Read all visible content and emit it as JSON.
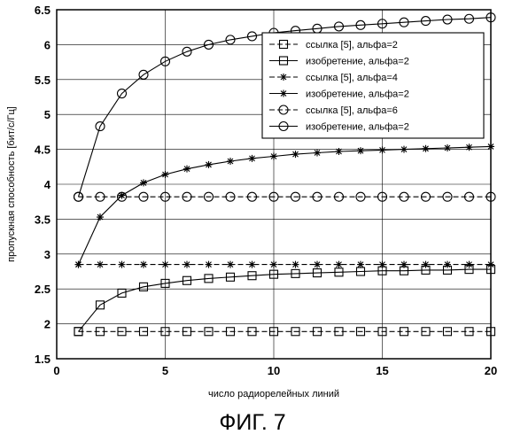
{
  "figure": {
    "caption": "ФИГ. 7"
  },
  "chart_data": {
    "type": "line",
    "xlabel": "число радиорелейных линий",
    "ylabel": "пропускная способность [бит/с/Гц]",
    "xlim": [
      0,
      20
    ],
    "ylim": [
      1.5,
      6.5
    ],
    "x_ticks": [
      0,
      5,
      10,
      15,
      20
    ],
    "y_ticks": [
      1.5,
      2,
      2.5,
      3,
      3.5,
      4,
      4.5,
      5,
      5.5,
      6,
      6.5
    ],
    "grid": true,
    "legend_position": "top-right",
    "x": [
      1,
      2,
      3,
      4,
      5,
      6,
      7,
      8,
      9,
      10,
      11,
      12,
      13,
      14,
      15,
      16,
      17,
      18,
      19,
      20
    ],
    "series": [
      {
        "name": "ссылка [5], альфа=2",
        "marker": "square",
        "line": "dashed",
        "values": [
          1.89,
          1.89,
          1.89,
          1.89,
          1.89,
          1.89,
          1.89,
          1.89,
          1.89,
          1.89,
          1.89,
          1.89,
          1.89,
          1.89,
          1.89,
          1.89,
          1.89,
          1.89,
          1.89,
          1.89
        ]
      },
      {
        "name": "изобретение, альфа=2",
        "marker": "square",
        "line": "solid",
        "values": [
          1.89,
          2.27,
          2.44,
          2.53,
          2.58,
          2.62,
          2.65,
          2.67,
          2.69,
          2.71,
          2.72,
          2.73,
          2.74,
          2.75,
          2.76,
          2.76,
          2.77,
          2.77,
          2.78,
          2.78
        ]
      },
      {
        "name": "ссылка [5], альфа=4",
        "marker": "star",
        "line": "dashed",
        "values": [
          2.85,
          2.85,
          2.85,
          2.85,
          2.85,
          2.85,
          2.85,
          2.85,
          2.85,
          2.85,
          2.85,
          2.85,
          2.85,
          2.85,
          2.85,
          2.85,
          2.85,
          2.85,
          2.85,
          2.85
        ]
      },
      {
        "name": "изобретение, альфа=2",
        "marker": "star",
        "line": "solid",
        "values": [
          2.85,
          3.53,
          3.84,
          4.02,
          4.14,
          4.22,
          4.28,
          4.33,
          4.37,
          4.4,
          4.43,
          4.45,
          4.47,
          4.48,
          4.49,
          4.5,
          4.51,
          4.52,
          4.53,
          4.54
        ]
      },
      {
        "name": "ссылка [5], альфа=6",
        "marker": "circle",
        "line": "dashed",
        "values": [
          3.82,
          3.82,
          3.82,
          3.82,
          3.82,
          3.82,
          3.82,
          3.82,
          3.82,
          3.82,
          3.82,
          3.82,
          3.82,
          3.82,
          3.82,
          3.82,
          3.82,
          3.82,
          3.82,
          3.82
        ]
      },
      {
        "name": "изобретение, альфа=2",
        "marker": "circle",
        "line": "solid",
        "values": [
          3.82,
          4.83,
          5.3,
          5.57,
          5.76,
          5.9,
          6.0,
          6.07,
          6.12,
          6.17,
          6.2,
          6.23,
          6.26,
          6.28,
          6.3,
          6.32,
          6.34,
          6.36,
          6.37,
          6.39
        ]
      }
    ]
  }
}
